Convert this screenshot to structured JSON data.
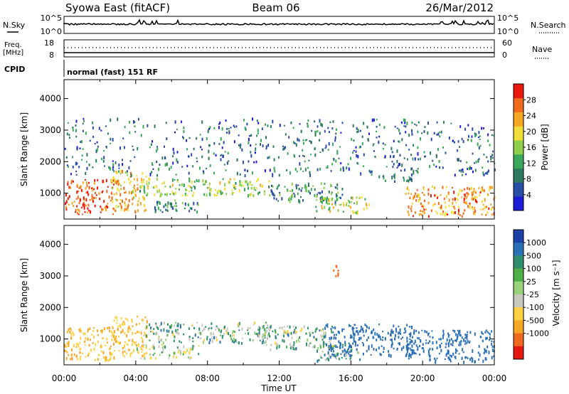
{
  "header": {
    "station": "Syowa East (fitACF)",
    "beam": "Beam 06",
    "date": "26/Mar/2012"
  },
  "panels": {
    "nsky": {
      "label": "N.Sky",
      "ticks": [
        "10^5",
        "10^0"
      ]
    },
    "nsearch": {
      "label": "N.Search",
      "ticks": [
        "10^5",
        "10^0"
      ]
    },
    "freq": {
      "label_line1": "Freq.",
      "label_line2": "[MHz]",
      "ticks": [
        "18",
        "8"
      ]
    },
    "nave": {
      "label": "Nave",
      "ticks": [
        "60",
        "0"
      ]
    },
    "cpid": {
      "label": "CPID",
      "value": "normal (fast) 151 RF"
    }
  },
  "colors": {
    "power": [
      "#1d1dd8",
      "#2a4ea6",
      "#2e7a5c",
      "#3aa85a",
      "#8ed04a",
      "#f2de3a",
      "#f5a623",
      "#f26a1b",
      "#e8180f"
    ],
    "velocity": [
      "#1d3fa8",
      "#2b6fb6",
      "#2f8f6a",
      "#4fb048",
      "#98d27a",
      "#c8c8c0",
      "#ffd042",
      "#f5a623",
      "#ef6a1e",
      "#e3170d"
    ]
  },
  "chart_data": [
    {
      "type": "heatmap",
      "title": "",
      "quantity": "Power",
      "xlabel": "",
      "ylabel": "Slant Range [km]",
      "xlim": [
        "00:00",
        "00:00"
      ],
      "ylim": [
        180,
        4600
      ],
      "x_ticks": [],
      "y_ticks": [
        "1000",
        "2000",
        "3000",
        "4000"
      ],
      "colorbar": {
        "label": "Power [dB]",
        "range": [
          0,
          32
        ],
        "tick_values": [
          4,
          8,
          12,
          16,
          20,
          24,
          28
        ],
        "ticks": [
          "4",
          "8",
          "12",
          "16",
          "20",
          "24",
          "28"
        ]
      },
      "regions": [
        {
          "t0": 0.0,
          "t1": 2.8,
          "r0": 350,
          "r1": 1450,
          "value": 27
        },
        {
          "t0": 2.6,
          "t1": 4.6,
          "r0": 450,
          "r1": 1750,
          "value": 22
        },
        {
          "t0": 4.2,
          "t1": 11.5,
          "r0": 950,
          "r1": 1500,
          "value": 16
        },
        {
          "t0": 5.0,
          "t1": 7.5,
          "r0": 400,
          "r1": 850,
          "value": 10
        },
        {
          "t0": 11.5,
          "t1": 15.5,
          "r0": 750,
          "r1": 1350,
          "value": 10
        },
        {
          "t0": 14.0,
          "t1": 17.0,
          "r0": 400,
          "r1": 900,
          "value": 18
        },
        {
          "t0": 17.5,
          "t1": 19.5,
          "r0": 1400,
          "r1": 1600,
          "value": 10
        },
        {
          "t0": 19.0,
          "t1": 24.0,
          "r0": 300,
          "r1": 1250,
          "value": 24
        },
        {
          "t0": 0.0,
          "t1": 24.0,
          "r0": 1600,
          "r1": 3400,
          "value": 8
        }
      ]
    },
    {
      "type": "heatmap",
      "title": "",
      "quantity": "Velocity",
      "xlabel": "Time UT",
      "ylabel": "Slant Range [km]",
      "xlim": [
        "00:00",
        "00:00"
      ],
      "ylim": [
        180,
        4600
      ],
      "x_ticks": [
        "00:00",
        "04:00",
        "08:00",
        "12:00",
        "16:00",
        "20:00",
        "00:00"
      ],
      "y_ticks": [
        "1000",
        "2000",
        "3000",
        "4000"
      ],
      "colorbar": {
        "label": "Velocity [m s⁻¹]",
        "ticks": [
          "1000",
          "500",
          "100",
          "25",
          "-25",
          "-100",
          "-500",
          "-1000"
        ]
      },
      "regions": [
        {
          "t0": 0.0,
          "t1": 2.8,
          "r0": 350,
          "r1": 1400,
          "value": -300
        },
        {
          "t0": 2.6,
          "t1": 4.6,
          "r0": 450,
          "r1": 1750,
          "value": -250
        },
        {
          "t0": 4.4,
          "t1": 11.5,
          "r0": 900,
          "r1": 1550,
          "value": 0
        },
        {
          "t0": 4.0,
          "t1": 7.5,
          "r0": 400,
          "r1": 850,
          "value": -80
        },
        {
          "t0": 11.0,
          "t1": 15.0,
          "r0": 700,
          "r1": 1450,
          "value": 0
        },
        {
          "t0": 14.0,
          "t1": 16.5,
          "r0": 300,
          "r1": 900,
          "value": 10
        },
        {
          "t0": 14.5,
          "t1": 19.5,
          "r0": 500,
          "r1": 1500,
          "value": 300
        },
        {
          "t0": 19.0,
          "t1": 24.0,
          "r0": 300,
          "r1": 1300,
          "value": 250
        },
        {
          "t0": 14.8,
          "t1": 15.3,
          "r0": 3000,
          "r1": 3400,
          "value": -800
        }
      ]
    }
  ]
}
